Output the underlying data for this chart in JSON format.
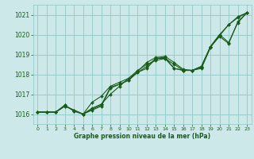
{
  "bg_color": "#cce8e8",
  "grid_color": "#99cccc",
  "line_color": "#1a5c1a",
  "marker_color": "#1a5c1a",
  "xlabel": "Graphe pression niveau de la mer (hPa)",
  "xlim": [
    -0.5,
    23.5
  ],
  "ylim": [
    1015.5,
    1021.5
  ],
  "yticks": [
    1016,
    1017,
    1018,
    1019,
    1020,
    1021
  ],
  "xticks": [
    0,
    1,
    2,
    3,
    4,
    5,
    6,
    7,
    8,
    9,
    10,
    11,
    12,
    13,
    14,
    15,
    16,
    17,
    18,
    19,
    20,
    21,
    22,
    23
  ],
  "series": [
    [
      1016.1,
      1016.1,
      1016.1,
      1016.4,
      1016.2,
      1016.0,
      1016.6,
      1016.9,
      1017.4,
      1017.6,
      1017.8,
      1018.2,
      1018.5,
      1018.7,
      1018.8,
      1018.5,
      1018.2,
      1018.2,
      1018.4,
      1019.4,
      1020.0,
      1020.5,
      1020.9,
      1021.1
    ],
    [
      1016.1,
      1016.1,
      1016.1,
      1016.4,
      1016.2,
      1016.0,
      1016.3,
      1016.5,
      1017.0,
      1017.4,
      1017.8,
      1018.1,
      1018.4,
      1018.8,
      1018.85,
      1018.3,
      1018.2,
      1018.2,
      1018.4,
      1019.4,
      1020.0,
      1019.6,
      1020.6,
      1021.1
    ],
    [
      1016.1,
      1016.1,
      1016.1,
      1016.45,
      1016.15,
      1016.0,
      1016.25,
      1016.45,
      1017.35,
      1017.5,
      1017.7,
      1018.15,
      1018.6,
      1018.85,
      1018.9,
      1018.6,
      1018.25,
      1018.2,
      1018.3,
      1019.35,
      1019.95,
      1020.5,
      1020.85,
      1021.1
    ],
    [
      1016.1,
      1016.1,
      1016.1,
      1016.45,
      1016.15,
      1016.0,
      1016.2,
      1016.4,
      1017.3,
      1017.5,
      1017.7,
      1018.1,
      1018.3,
      1018.8,
      1018.8,
      1018.3,
      1018.2,
      1018.2,
      1018.35,
      1019.4,
      1019.9,
      1019.55,
      1020.65,
      1021.1
    ]
  ]
}
